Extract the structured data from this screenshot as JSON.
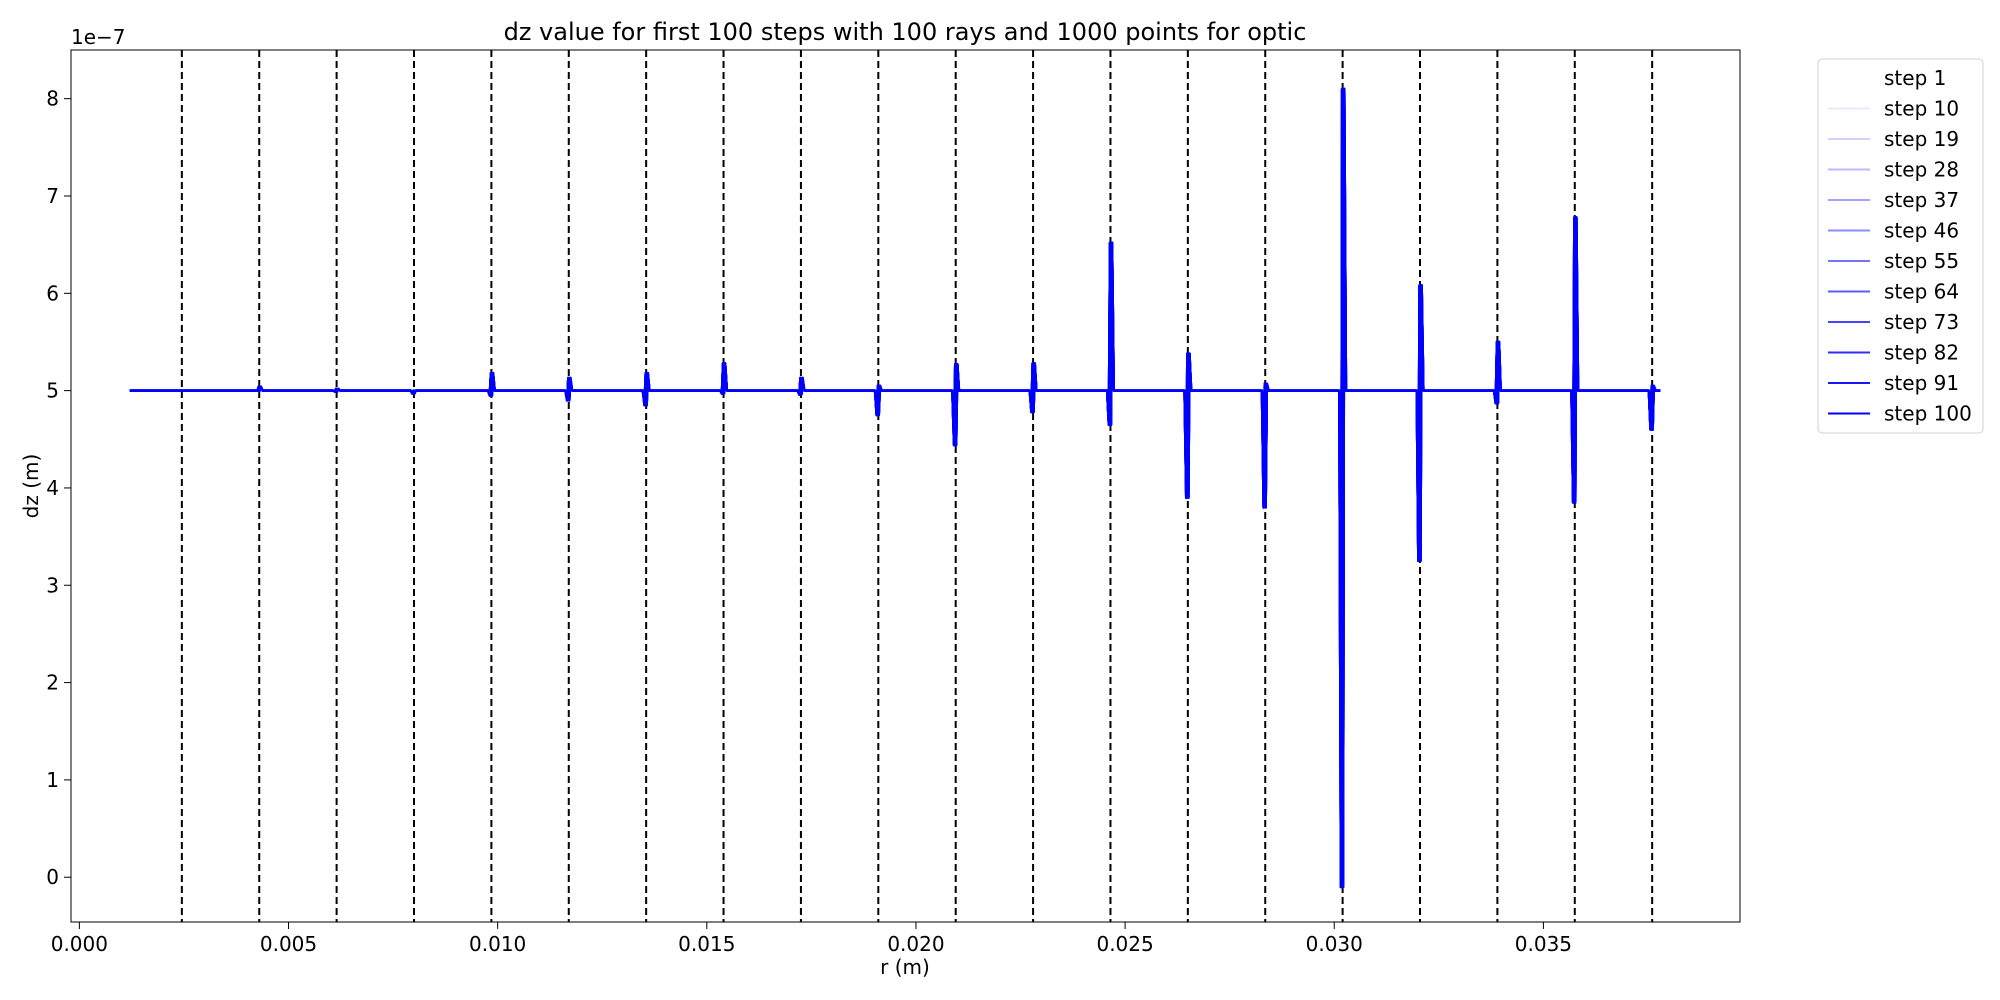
{
  "chart_data": {
    "type": "line",
    "title": "dz value for first 100 steps with 100 rays and 1000 points for optic",
    "xlabel": "r (m)",
    "ylabel": "dz (m)",
    "y_offset_text": "1e−7",
    "xlim": [
      -0.0002,
      0.0397
    ],
    "ylim": [
      -0.46,
      8.5
    ],
    "x_ticks": [
      0.0,
      0.005,
      0.01,
      0.015,
      0.02,
      0.025,
      0.03,
      0.035
    ],
    "x_tick_labels": [
      "0.000",
      "0.005",
      "0.010",
      "0.015",
      "0.020",
      "0.025",
      "0.030",
      "0.035"
    ],
    "y_ticks": [
      0,
      1,
      2,
      3,
      4,
      5,
      6,
      7,
      8
    ],
    "y_tick_labels": [
      "0",
      "1",
      "2",
      "3",
      "4",
      "5",
      "6",
      "7",
      "8"
    ],
    "y_units_scale": "values in units of 1e-7 m",
    "grid": false,
    "legend_position": "outside-right",
    "line_color": "#0000ff",
    "boundary_line_color": "#000000",
    "boundary_lines_x": [
      0.00245,
      0.0043,
      0.00615,
      0.008,
      0.00985,
      0.0117,
      0.01355,
      0.0154,
      0.01725,
      0.0191,
      0.02095,
      0.0228,
      0.02465,
      0.0265,
      0.02835,
      0.0302,
      0.03205,
      0.0339,
      0.03575,
      0.0376
    ],
    "range_x": [
      0.0012,
      0.0378
    ],
    "baseline": 5.0,
    "series": [
      {
        "name": "step 1",
        "opacity": 0.0
      },
      {
        "name": "step 10",
        "opacity": 0.09
      },
      {
        "name": "step 19",
        "opacity": 0.18
      },
      {
        "name": "step 28",
        "opacity": 0.27
      },
      {
        "name": "step 37",
        "opacity": 0.36
      },
      {
        "name": "step 46",
        "opacity": 0.45
      },
      {
        "name": "step 55",
        "opacity": 0.55
      },
      {
        "name": "step 64",
        "opacity": 0.64
      },
      {
        "name": "step 73",
        "opacity": 0.73
      },
      {
        "name": "step 82",
        "opacity": 0.82
      },
      {
        "name": "step 91",
        "opacity": 0.91
      },
      {
        "name": "step 100",
        "opacity": 1.0
      }
    ],
    "spikes": [
      {
        "x": 0.0043,
        "high": 5.04,
        "low": 5.0
      },
      {
        "x": 0.00615,
        "high": 5.02,
        "low": 4.99
      },
      {
        "x": 0.008,
        "high": 5.0,
        "low": 4.97
      },
      {
        "x": 0.00985,
        "high": 5.18,
        "low": 4.95
      },
      {
        "x": 0.0117,
        "high": 5.13,
        "low": 4.9
      },
      {
        "x": 0.01355,
        "high": 5.18,
        "low": 4.85
      },
      {
        "x": 0.0154,
        "high": 5.28,
        "low": 4.97
      },
      {
        "x": 0.01725,
        "high": 5.13,
        "low": 4.96
      },
      {
        "x": 0.0191,
        "high": 5.05,
        "low": 4.75
      },
      {
        "x": 0.02095,
        "high": 5.27,
        "low": 4.44
      },
      {
        "x": 0.0228,
        "high": 5.28,
        "low": 4.78
      },
      {
        "x": 0.02465,
        "high": 6.52,
        "low": 4.65
      },
      {
        "x": 0.0265,
        "high": 5.38,
        "low": 3.9
      },
      {
        "x": 0.02835,
        "high": 5.07,
        "low": 3.8
      },
      {
        "x": 0.0302,
        "high": 8.1,
        "low": -0.1
      },
      {
        "x": 0.03205,
        "high": 6.08,
        "low": 3.25
      },
      {
        "x": 0.0339,
        "high": 5.5,
        "low": 4.87
      },
      {
        "x": 0.03575,
        "high": 6.78,
        "low": 3.85
      },
      {
        "x": 0.0376,
        "high": 5.05,
        "low": 4.6
      }
    ]
  }
}
